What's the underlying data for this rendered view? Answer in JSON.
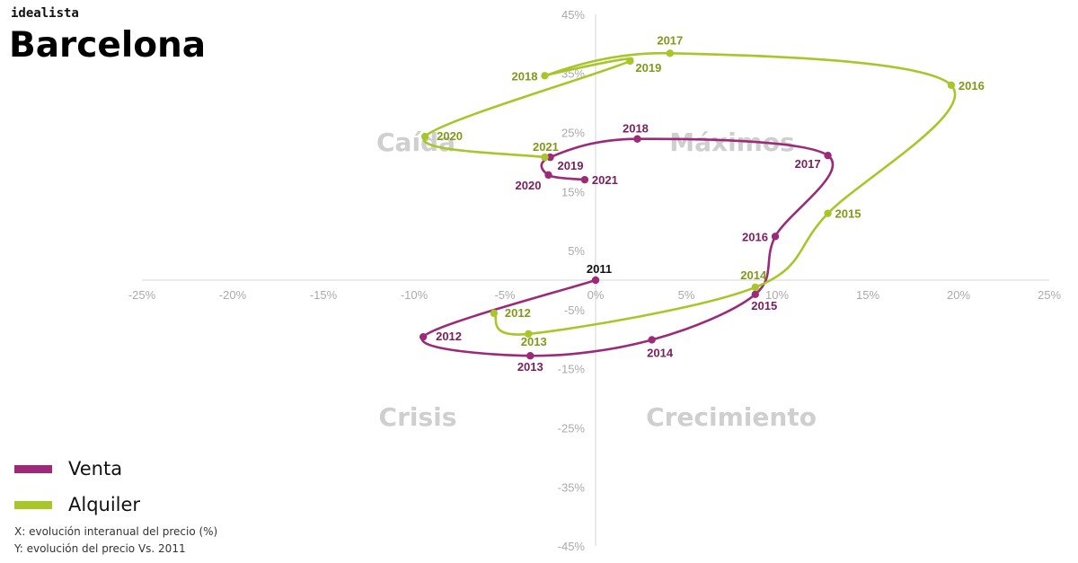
{
  "brand": "idealista",
  "city": "Barcelona",
  "legend": [
    {
      "label": "Venta",
      "color": "#9c2a78"
    },
    {
      "label": "Alquiler",
      "color": "#a8c62a"
    }
  ],
  "notes": {
    "x_note": "X: evolución interanual del precio (%)",
    "y_note": "Y: evolución del precio Vs. 2011"
  },
  "chart_data": {
    "type": "scatter",
    "xlim": [
      -25,
      25
    ],
    "ylim": [
      -45,
      45
    ],
    "x_ticks": [
      "-25%",
      "-20%",
      "-15%",
      "-10%",
      "-5%",
      "0%",
      "5%",
      "10%",
      "15%",
      "20%",
      "25%"
    ],
    "y_ticks": [
      "45%",
      "35%",
      "25%",
      "15%",
      "5%",
      "-5%",
      "-15%",
      "-25%",
      "-35%",
      "-45%"
    ],
    "quadrants": [
      "Caída",
      "Máximos",
      "Crisis",
      "Crecimiento"
    ],
    "series": [
      {
        "name": "Venta",
        "color": "#9c2a78",
        "points": [
          {
            "label": "2011",
            "x": 0.0,
            "y": 0.0
          },
          {
            "label": "2012",
            "x": -9.5,
            "y": -9.6
          },
          {
            "label": "2013",
            "x": -3.6,
            "y": -12.8
          },
          {
            "label": "2014",
            "x": 3.1,
            "y": -10.1
          },
          {
            "label": "2015",
            "x": 8.8,
            "y": -2.4
          },
          {
            "label": "2016",
            "x": 9.9,
            "y": 7.4
          },
          {
            "label": "2017",
            "x": 12.8,
            "y": 21.1
          },
          {
            "label": "2018",
            "x": 2.3,
            "y": 23.9
          },
          {
            "label": "2019",
            "x": -2.5,
            "y": 20.8
          },
          {
            "label": "2020",
            "x": -2.6,
            "y": 17.8
          },
          {
            "label": "2021",
            "x": -0.6,
            "y": 17.0
          }
        ]
      },
      {
        "name": "Alquiler",
        "color": "#a8c62a",
        "points": [
          {
            "label": "2012",
            "x": -5.6,
            "y": -5.6
          },
          {
            "label": "2013",
            "x": -3.7,
            "y": -9.1
          },
          {
            "label": "2014",
            "x": 8.8,
            "y": -1.2
          },
          {
            "label": "2015",
            "x": 12.8,
            "y": 11.3
          },
          {
            "label": "2016",
            "x": 19.6,
            "y": 33.0
          },
          {
            "label": "2017",
            "x": 4.1,
            "y": 38.4
          },
          {
            "label": "2018",
            "x": -2.8,
            "y": 34.6
          },
          {
            "label": "2019",
            "x": 1.9,
            "y": 37.1
          },
          {
            "label": "2020",
            "x": -9.4,
            "y": 24.3
          },
          {
            "label": "2021",
            "x": -2.8,
            "y": 20.8
          }
        ]
      }
    ]
  }
}
